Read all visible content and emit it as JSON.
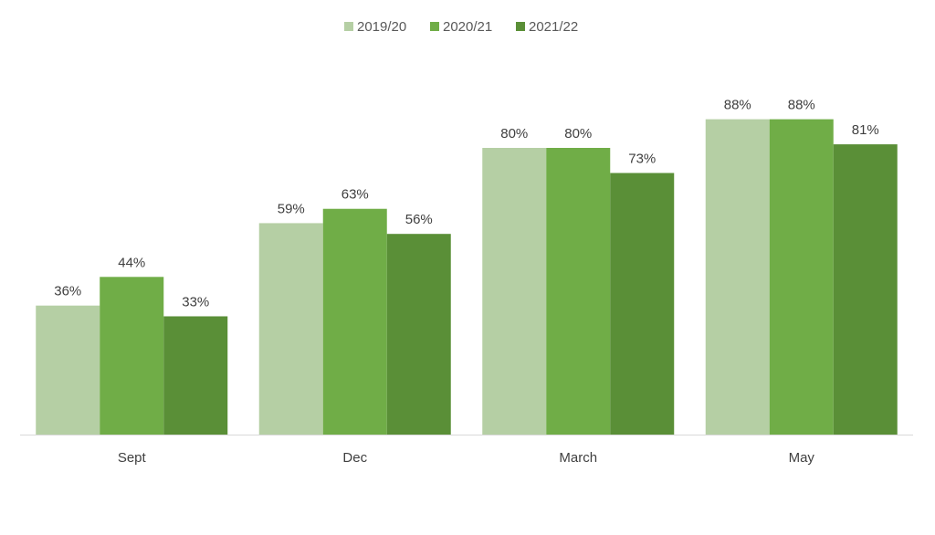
{
  "chart_data": {
    "type": "bar",
    "categories": [
      "Sept",
      "Dec",
      "March",
      "May"
    ],
    "series": [
      {
        "name": "2019/20",
        "color": "#b5cfa4",
        "values": [
          36,
          59,
          80,
          88
        ],
        "labels": [
          "36%",
          "59%",
          "80%",
          "88%"
        ]
      },
      {
        "name": "2020/21",
        "color": "#70ad47",
        "values": [
          44,
          63,
          80,
          88
        ],
        "labels": [
          "44%",
          "63%",
          "80%",
          "88%"
        ]
      },
      {
        "name": "2021/22",
        "color": "#5a8f37",
        "values": [
          33,
          56,
          73,
          81
        ],
        "labels": [
          "33%",
          "56%",
          "73%",
          "81%"
        ]
      }
    ],
    "ylim": [
      0,
      100
    ],
    "legend": "top-center",
    "grid": false,
    "axis_color": "#d9d9d9"
  }
}
